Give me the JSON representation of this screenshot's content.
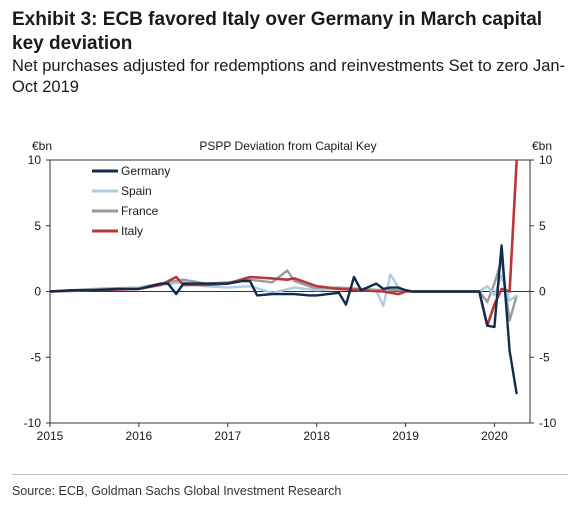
{
  "title": "Exhibit 3: ECB favored Italy over Germany in March capital key deviation",
  "subtitle": "Net purchases adjusted for redemptions and reinvestments Set to zero Jan-Oct 2019",
  "source": "Source: ECB, Goldman Sachs Global Investment Research",
  "colors": {
    "Germany": "#0f2c4d",
    "Spain": "#a9cde6",
    "France": "#9a9a9a",
    "Italy": "#b8383a"
  },
  "chart_data": {
    "type": "line",
    "title": "PSPP Deviation from Capital Key",
    "ylabel_left": "€bn",
    "ylabel_right": "€bn",
    "xlim": [
      2015,
      2020.4
    ],
    "ylim": [
      -10,
      10
    ],
    "x_ticks": [
      2015,
      2016,
      2017,
      2018,
      2019,
      2020
    ],
    "x_tick_labels": [
      "2015",
      "2016",
      "2017",
      "2018",
      "2019",
      "2020"
    ],
    "y_ticks": [
      10,
      5,
      0,
      -5,
      -10
    ],
    "y_tick_labels": [
      "10",
      "5",
      "0",
      "-5",
      "-10"
    ],
    "legend_position": "top-left",
    "series": [
      {
        "name": "Germany",
        "x": [
          2015.0,
          2015.25,
          2015.5,
          2015.75,
          2016.0,
          2016.25,
          2016.33,
          2016.42,
          2016.5,
          2016.75,
          2017.0,
          2017.17,
          2017.25,
          2017.33,
          2017.5,
          2017.75,
          2017.92,
          2018.0,
          2018.25,
          2018.33,
          2018.42,
          2018.5,
          2018.67,
          2018.75,
          2018.83,
          2018.92,
          2019.0,
          2019.08,
          2019.5,
          2019.83,
          2019.92,
          2020.0,
          2020.08,
          2020.17,
          2020.25
        ],
        "values": [
          0,
          0.1,
          0.1,
          0.2,
          0.2,
          0.6,
          0.6,
          -0.2,
          0.6,
          0.6,
          0.6,
          0.8,
          0.8,
          -0.3,
          -0.2,
          -0.2,
          -0.3,
          -0.3,
          -0.1,
          -1.0,
          1.1,
          0.1,
          0.6,
          0.2,
          0.3,
          0.3,
          0.1,
          0,
          0,
          0,
          -2.6,
          -2.7,
          3.5,
          -4.5,
          -7.8
        ]
      },
      {
        "name": "Spain",
        "x": [
          2015.0,
          2015.5,
          2016.0,
          2016.5,
          2016.75,
          2017.0,
          2017.25,
          2017.5,
          2017.75,
          2018.0,
          2018.25,
          2018.5,
          2018.67,
          2018.75,
          2018.83,
          2018.92,
          2019.0,
          2019.08,
          2019.5,
          2019.83,
          2019.92,
          2020.0,
          2020.08,
          2020.17,
          2020.25
        ],
        "values": [
          0,
          0.1,
          0.3,
          0.7,
          0.4,
          0.3,
          0.4,
          -0.1,
          0.3,
          0.1,
          0.2,
          0.1,
          0.1,
          -1.1,
          1.3,
          0.3,
          0.1,
          0,
          0,
          0,
          0.4,
          -0.3,
          1.2,
          -0.7,
          -0.3
        ]
      },
      {
        "name": "France",
        "x": [
          2015.0,
          2015.5,
          2016.0,
          2016.5,
          2016.75,
          2017.0,
          2017.25,
          2017.5,
          2017.67,
          2017.75,
          2018.0,
          2018.25,
          2018.5,
          2018.75,
          2019.0,
          2019.08,
          2019.5,
          2019.83,
          2019.92,
          2020.0,
          2020.08,
          2020.17,
          2020.25
        ],
        "values": [
          0,
          0.2,
          0.3,
          0.9,
          0.6,
          0.7,
          0.9,
          0.7,
          1.6,
          0.8,
          0.2,
          0.3,
          0.2,
          0.1,
          0.1,
          0,
          0,
          0,
          -0.8,
          0.6,
          2.4,
          -2.2,
          -0.3
        ]
      },
      {
        "name": "Italy",
        "x": [
          2015.0,
          2015.5,
          2016.0,
          2016.25,
          2016.42,
          2016.5,
          2016.75,
          2017.0,
          2017.25,
          2017.5,
          2017.67,
          2017.75,
          2018.0,
          2018.25,
          2018.5,
          2018.75,
          2018.92,
          2019.0,
          2019.08,
          2019.5,
          2019.83,
          2019.92,
          2020.0,
          2020.08,
          2020.17,
          2020.25
        ],
        "values": [
          0,
          0.1,
          0.2,
          0.5,
          1.1,
          0.5,
          0.5,
          0.6,
          1.1,
          1.0,
          0.9,
          1.0,
          0.4,
          0.2,
          0.1,
          0,
          -0.2,
          0,
          0,
          0,
          0,
          -2.6,
          -1.0,
          0.2,
          0,
          10.0
        ]
      }
    ]
  }
}
